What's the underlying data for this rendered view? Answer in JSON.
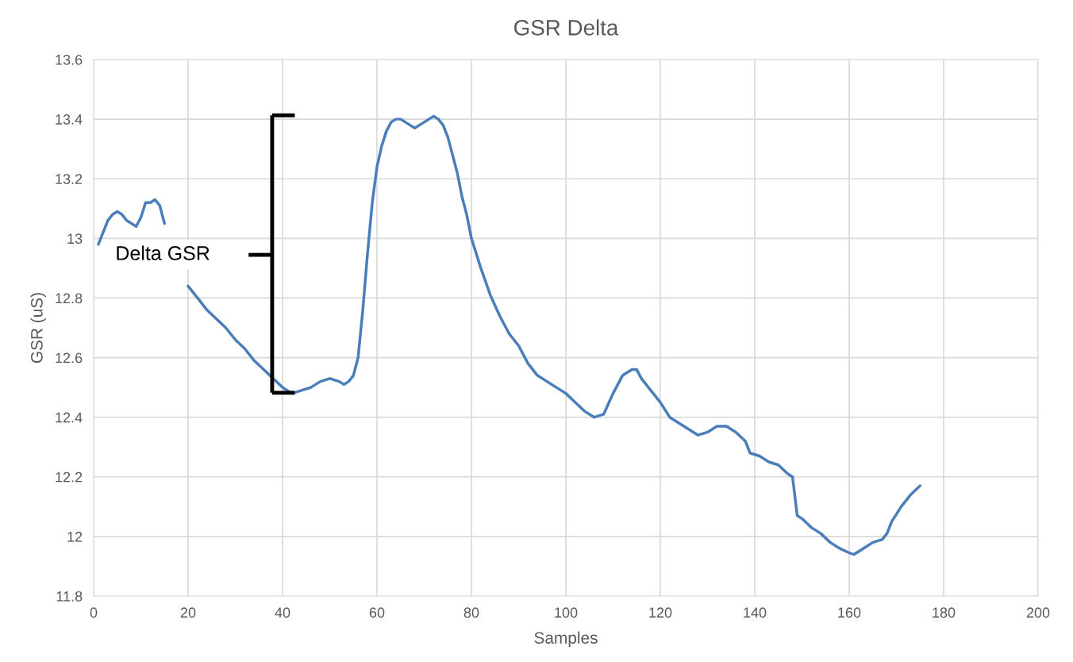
{
  "chart_data": {
    "type": "line",
    "title": "GSR Delta",
    "xlabel": "Samples",
    "ylabel": "GSR (uS)",
    "annotations": [
      "Delta GSR"
    ],
    "xlim": [
      0,
      200
    ],
    "xticks": [
      0,
      20,
      40,
      60,
      80,
      100,
      120,
      140,
      160,
      180,
      200
    ],
    "ylim": [
      11.8,
      13.6
    ],
    "yticks": [
      {
        "value": 11.8,
        "label": "11.8"
      },
      {
        "value": 12,
        "label": "12"
      },
      {
        "value": 12.2,
        "label": "12.2"
      },
      {
        "value": 12.4,
        "label": "12.4"
      },
      {
        "value": 12.6,
        "label": "12.6"
      },
      {
        "value": 12.8,
        "label": "12.8"
      },
      {
        "value": 13,
        "label": "13"
      },
      {
        "value": 13.2,
        "label": "13.2"
      },
      {
        "value": 13.4,
        "label": "13.4"
      },
      {
        "value": 13.6,
        "label": "13.6"
      }
    ],
    "grid": true,
    "legend": false,
    "marker": "none",
    "line_style": "solid",
    "series": [
      {
        "color": "#4a7ebb",
        "x": [
          1,
          2,
          3,
          4,
          5,
          6,
          7,
          8,
          9,
          10,
          11,
          12,
          13,
          14,
          15,
          16,
          18,
          20,
          22,
          24,
          26,
          28,
          30,
          32,
          34,
          36,
          38,
          40,
          42,
          44,
          46,
          48,
          50,
          52,
          53,
          54,
          55,
          56,
          57,
          58,
          59,
          60,
          61,
          62,
          63,
          64,
          65,
          66,
          67,
          68,
          69,
          70,
          71,
          72,
          73,
          74,
          75,
          76,
          77,
          78,
          79,
          80,
          82,
          84,
          86,
          88,
          90,
          92,
          94,
          96,
          98,
          100,
          102,
          104,
          106,
          108,
          110,
          112,
          114,
          115,
          116,
          118,
          120,
          122,
          124,
          126,
          128,
          130,
          132,
          134,
          136,
          138,
          139,
          141,
          143,
          145,
          147,
          148,
          149,
          150,
          152,
          154,
          156,
          158,
          160,
          161,
          163,
          165,
          167,
          168,
          169,
          171,
          173,
          175
        ],
        "values": [
          12.98,
          13.02,
          13.06,
          13.08,
          13.09,
          13.08,
          13.06,
          13.05,
          13.04,
          13.07,
          13.12,
          13.12,
          13.13,
          13.11,
          13.05,
          null,
          null,
          12.84,
          12.8,
          12.76,
          12.73,
          12.7,
          12.66,
          12.63,
          12.59,
          12.56,
          12.53,
          12.5,
          12.48,
          12.49,
          12.5,
          12.52,
          12.53,
          12.52,
          12.51,
          12.52,
          12.54,
          12.6,
          12.76,
          12.95,
          13.12,
          13.24,
          13.31,
          13.36,
          13.39,
          13.4,
          13.4,
          13.39,
          13.38,
          13.37,
          13.38,
          13.39,
          13.4,
          13.41,
          13.4,
          13.38,
          13.34,
          13.28,
          13.22,
          13.14,
          13.08,
          13.0,
          12.9,
          12.81,
          12.74,
          12.68,
          12.64,
          12.58,
          12.54,
          12.52,
          12.5,
          12.48,
          12.45,
          12.42,
          12.4,
          12.41,
          12.48,
          12.54,
          12.56,
          12.56,
          12.53,
          12.49,
          12.45,
          12.4,
          12.38,
          12.36,
          12.34,
          12.35,
          12.37,
          12.37,
          12.35,
          12.32,
          12.28,
          12.27,
          12.25,
          12.24,
          12.21,
          12.2,
          12.07,
          12.06,
          12.03,
          12.01,
          11.98,
          11.96,
          11.945,
          11.94,
          11.96,
          11.98,
          11.99,
          12.01,
          12.05,
          12.1,
          12.14,
          12.17
        ]
      }
    ]
  }
}
